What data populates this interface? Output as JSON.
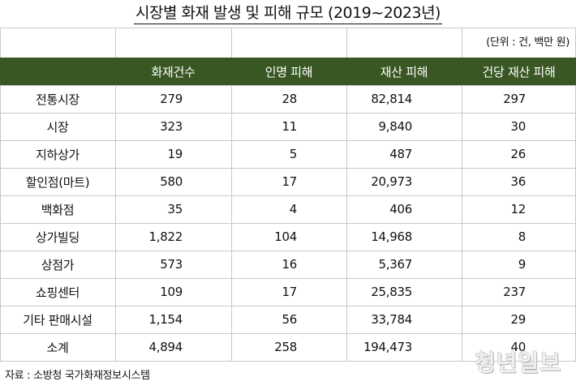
{
  "title": "시장별 화재 발생 및 피해 규모 (2019~2023년)",
  "unit_note": "(단위 : 건, 백만 원)",
  "columns": [
    "",
    "화재건수",
    "인명 피해",
    "재산 피해",
    "건당 재산 피해"
  ],
  "rows": [
    {
      "label": "전통시장",
      "fires": "279",
      "casualties": "28",
      "property": "82,814",
      "per_case": "297"
    },
    {
      "label": "시장",
      "fires": "323",
      "casualties": "11",
      "property": "9,840",
      "per_case": "30"
    },
    {
      "label": "지하상가",
      "fires": "19",
      "casualties": "5",
      "property": "487",
      "per_case": "26"
    },
    {
      "label": "할인점(마트)",
      "fires": "580",
      "casualties": "17",
      "property": "20,973",
      "per_case": "36"
    },
    {
      "label": "백화점",
      "fires": "35",
      "casualties": "4",
      "property": "406",
      "per_case": "12"
    },
    {
      "label": "상가빌딩",
      "fires": "1,822",
      "casualties": "104",
      "property": "14,968",
      "per_case": "8"
    },
    {
      "label": "상점가",
      "fires": "573",
      "casualties": "16",
      "property": "5,367",
      "per_case": "9"
    },
    {
      "label": "쇼핑센터",
      "fires": "109",
      "casualties": "17",
      "property": "25,835",
      "per_case": "237"
    },
    {
      "label": "기타 판매시설",
      "fires": "1,154",
      "casualties": "56",
      "property": "33,784",
      "per_case": "29"
    },
    {
      "label": "소계",
      "fires": "4,894",
      "casualties": "258",
      "property": "194,473",
      "per_case": "40"
    }
  ],
  "source": "자료 : 소방청 국가화재정보시스템",
  "watermark": "청년일보",
  "colors": {
    "header_bg": "#385723",
    "header_text": "#ffffff",
    "grid": "#c9c9c9"
  }
}
